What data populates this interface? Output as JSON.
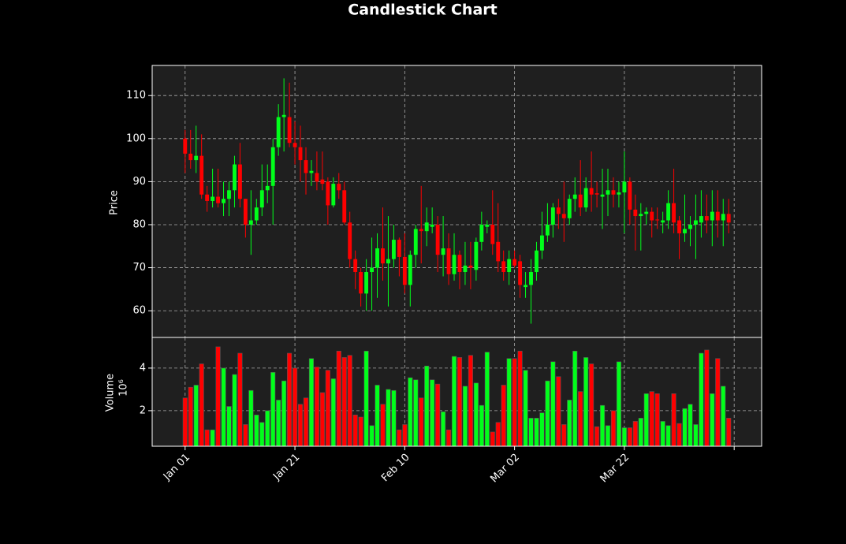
{
  "chart_data": {
    "type": "candlestick",
    "title": "Candlestick Chart",
    "ylabel": "Price",
    "y2label": "Volume",
    "y2_offset_label": "10⁶",
    "x": [
      0,
      1,
      2,
      3,
      4,
      5,
      6,
      7,
      8,
      9,
      10,
      11,
      12,
      13,
      14,
      15,
      16,
      17,
      18,
      19,
      20,
      21,
      22,
      23,
      24,
      25,
      26,
      27,
      28,
      29,
      30,
      31,
      32,
      33,
      34,
      35,
      36,
      37,
      38,
      39,
      40,
      41,
      42,
      43,
      44,
      45,
      46,
      47,
      48,
      49,
      50,
      51,
      52,
      53,
      54,
      55,
      56,
      57,
      58,
      59,
      60,
      61,
      62,
      63,
      64,
      65,
      66,
      67,
      68,
      69,
      70,
      71,
      72,
      73,
      74,
      75,
      76,
      77,
      78,
      79,
      80,
      81,
      82,
      83,
      84,
      85,
      86,
      87,
      88,
      89,
      90,
      91,
      92,
      93,
      94,
      95,
      96,
      97,
      98,
      99
    ],
    "open": [
      100,
      96.5,
      95,
      96,
      87,
      85.5,
      86.5,
      85,
      86,
      88,
      94,
      86,
      80,
      81,
      84,
      88,
      89,
      98,
      105,
      105,
      99,
      98,
      95,
      92,
      92,
      90.5,
      90,
      84.5,
      89.5,
      88,
      80.5,
      72,
      69,
      64,
      69,
      70,
      74.5,
      71,
      72,
      76.5,
      72.5,
      66,
      73,
      79,
      78.5,
      79.5,
      80,
      73,
      74.5,
      68.5,
      73,
      69,
      70.5,
      69.5,
      76,
      79.5,
      80,
      76,
      71.5,
      69,
      72,
      71.5,
      65.5,
      66,
      69,
      74,
      77.5,
      80,
      84,
      82.5,
      81.5,
      86,
      87,
      84,
      88.5,
      87.3,
      86.5,
      87,
      88,
      87,
      87.5,
      90,
      83.5,
      82,
      82.5,
      83,
      81.2,
      80.5,
      81,
      85,
      81,
      78,
      79,
      80,
      80.5,
      82,
      81,
      83,
      81,
      82.5
    ],
    "high": [
      102,
      102,
      103,
      101,
      89,
      93,
      93,
      90,
      90,
      96,
      99,
      86,
      88,
      86,
      94,
      94,
      100,
      108,
      114,
      113,
      104,
      103,
      98,
      95,
      97,
      97,
      91,
      91,
      92,
      90,
      83,
      74,
      70,
      72,
      77,
      78,
      84,
      82,
      80,
      77,
      78,
      74,
      80,
      89,
      84,
      84,
      82,
      82,
      78,
      78,
      74,
      76,
      76,
      77,
      83,
      81,
      88,
      85,
      74,
      74,
      74,
      73,
      69,
      72,
      76,
      83,
      85,
      85,
      86,
      90,
      87,
      91,
      95,
      91,
      97,
      90,
      93,
      93,
      91,
      90,
      97,
      91,
      87,
      85,
      84,
      84,
      84,
      83,
      88,
      93,
      82,
      87,
      82,
      87,
      88,
      87,
      88,
      88,
      86,
      86
    ],
    "low": [
      92,
      93,
      92,
      86,
      83,
      84,
      84,
      82,
      82,
      84,
      84,
      77,
      73,
      80,
      82,
      85,
      80,
      96,
      97,
      98,
      94,
      90,
      87,
      89,
      88,
      88,
      80,
      84,
      86,
      80,
      70,
      65,
      61,
      60,
      60,
      63,
      67,
      61,
      70,
      68,
      64,
      61,
      70,
      71,
      75,
      78,
      69,
      68,
      66,
      67,
      65,
      66,
      65,
      67,
      74,
      78,
      73,
      69,
      67,
      66,
      70,
      63,
      63,
      57,
      67,
      72,
      76,
      77,
      79,
      76,
      80,
      83,
      82,
      83,
      83,
      84,
      79,
      82,
      84,
      84,
      78,
      80,
      74,
      74,
      80,
      77,
      79,
      78,
      79,
      78,
      72,
      76,
      75,
      72,
      77,
      78,
      75,
      77,
      75,
      78
    ],
    "close": [
      96.5,
      95,
      96,
      87,
      85.5,
      86.5,
      85,
      86,
      88,
      94,
      86,
      80,
      81,
      84,
      88,
      89,
      98,
      105,
      105.5,
      99,
      98,
      95,
      92,
      92.5,
      90,
      89.5,
      84.5,
      89.5,
      88,
      80.5,
      72,
      69,
      64,
      69,
      70,
      74.5,
      71,
      72,
      76.5,
      72.5,
      66,
      73,
      79,
      78.5,
      80.5,
      80,
      73,
      74.5,
      68.5,
      73,
      69,
      70.5,
      70,
      76,
      80,
      80,
      75.5,
      71.5,
      69,
      72,
      70.5,
      66,
      66,
      69,
      74,
      77.5,
      80,
      84,
      82.5,
      81.5,
      86,
      87,
      84,
      88.5,
      87,
      87,
      87,
      88,
      87,
      87.5,
      90,
      83.5,
      82,
      82.5,
      83,
      81,
      81,
      81,
      85,
      80.5,
      78,
      79,
      80,
      81,
      82,
      81,
      83,
      81,
      82.5,
      80.5
    ],
    "volume": [
      2.6,
      3.1,
      3.2,
      4.2,
      1.1,
      1.1,
      5.0,
      4.0,
      2.2,
      3.7,
      4.7,
      1.35,
      2.95,
      1.8,
      1.45,
      2.0,
      3.8,
      2.5,
      3.4,
      4.7,
      4.0,
      2.3,
      2.6,
      4.45,
      4.05,
      2.85,
      3.9,
      3.5,
      4.8,
      4.5,
      4.6,
      1.8,
      1.7,
      4.8,
      1.3,
      3.2,
      2.3,
      3.0,
      2.95,
      1.1,
      1.35,
      3.55,
      3.45,
      2.6,
      4.1,
      3.45,
      3.25,
      1.95,
      1.1,
      4.55,
      4.5,
      3.15,
      4.6,
      3.3,
      2.25,
      4.75,
      1.0,
      1.45,
      3.2,
      4.45,
      4.45,
      4.8,
      3.9,
      1.65,
      1.65,
      1.9,
      3.4,
      4.3,
      3.6,
      1.35,
      2.5,
      4.8,
      2.9,
      4.5,
      4.2,
      1.25,
      2.25,
      1.3,
      2.0,
      4.3,
      1.2,
      1.2,
      1.5,
      1.65,
      2.8,
      2.9,
      2.8,
      1.5,
      1.3,
      2.8,
      1.4,
      2.1,
      2.3,
      1.35,
      4.7,
      4.85,
      2.8,
      4.45,
      3.15,
      1.65
    ],
    "up_color": "#00ff1a",
    "down_color": "#ff0000",
    "xlim": [
      -6,
      105
    ],
    "xticks": [
      {
        "value": 0,
        "label": "Jan 01"
      },
      {
        "value": 20,
        "label": "Jan 21"
      },
      {
        "value": 40,
        "label": "Feb 10"
      },
      {
        "value": 60,
        "label": "Mar 02"
      },
      {
        "value": 80,
        "label": "Mar 22"
      },
      {
        "value": 100,
        "label": null
      }
    ],
    "ylim": [
      53.8,
      117
    ],
    "yticks": [
      60,
      70,
      80,
      90,
      100,
      110
    ],
    "y2lim": [
      0.33,
      5.44
    ],
    "y2ticks": [
      2,
      4
    ],
    "grid": true
  }
}
